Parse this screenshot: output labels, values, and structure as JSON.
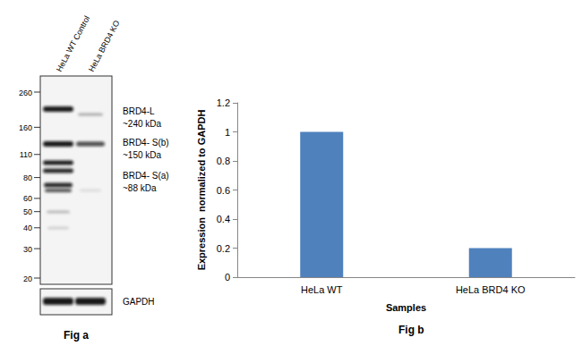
{
  "chart_data": {
    "type": "bar",
    "caption": "Fig b",
    "x_label": "Samples",
    "y_label": "Expression  normalized to GAPDH",
    "categories": [
      "HeLa WT",
      "HeLa BRD4 KO"
    ],
    "values": [
      1,
      0.2
    ],
    "color": "#4f81bd",
    "ylim": [
      0,
      1.2
    ],
    "yticks": [
      0,
      0.2,
      0.4,
      0.6,
      0.8,
      1,
      1.2
    ],
    "grid": false
  },
  "blot": {
    "caption": "Fig a",
    "lanes": [
      "HeLa WT Control",
      "HeLa BRD4 KO"
    ],
    "markers": [
      260,
      160,
      110,
      80,
      60,
      50,
      40,
      30,
      20
    ],
    "bands": [
      {
        "name": "BRD4-L",
        "size": "~240 kDa"
      },
      {
        "name": "BRD4- S(b)",
        "size": "~150 kDa"
      },
      {
        "name": "BRD4- S(a)",
        "size": "~88 kDa"
      }
    ],
    "loading_control": "GAPDH"
  }
}
